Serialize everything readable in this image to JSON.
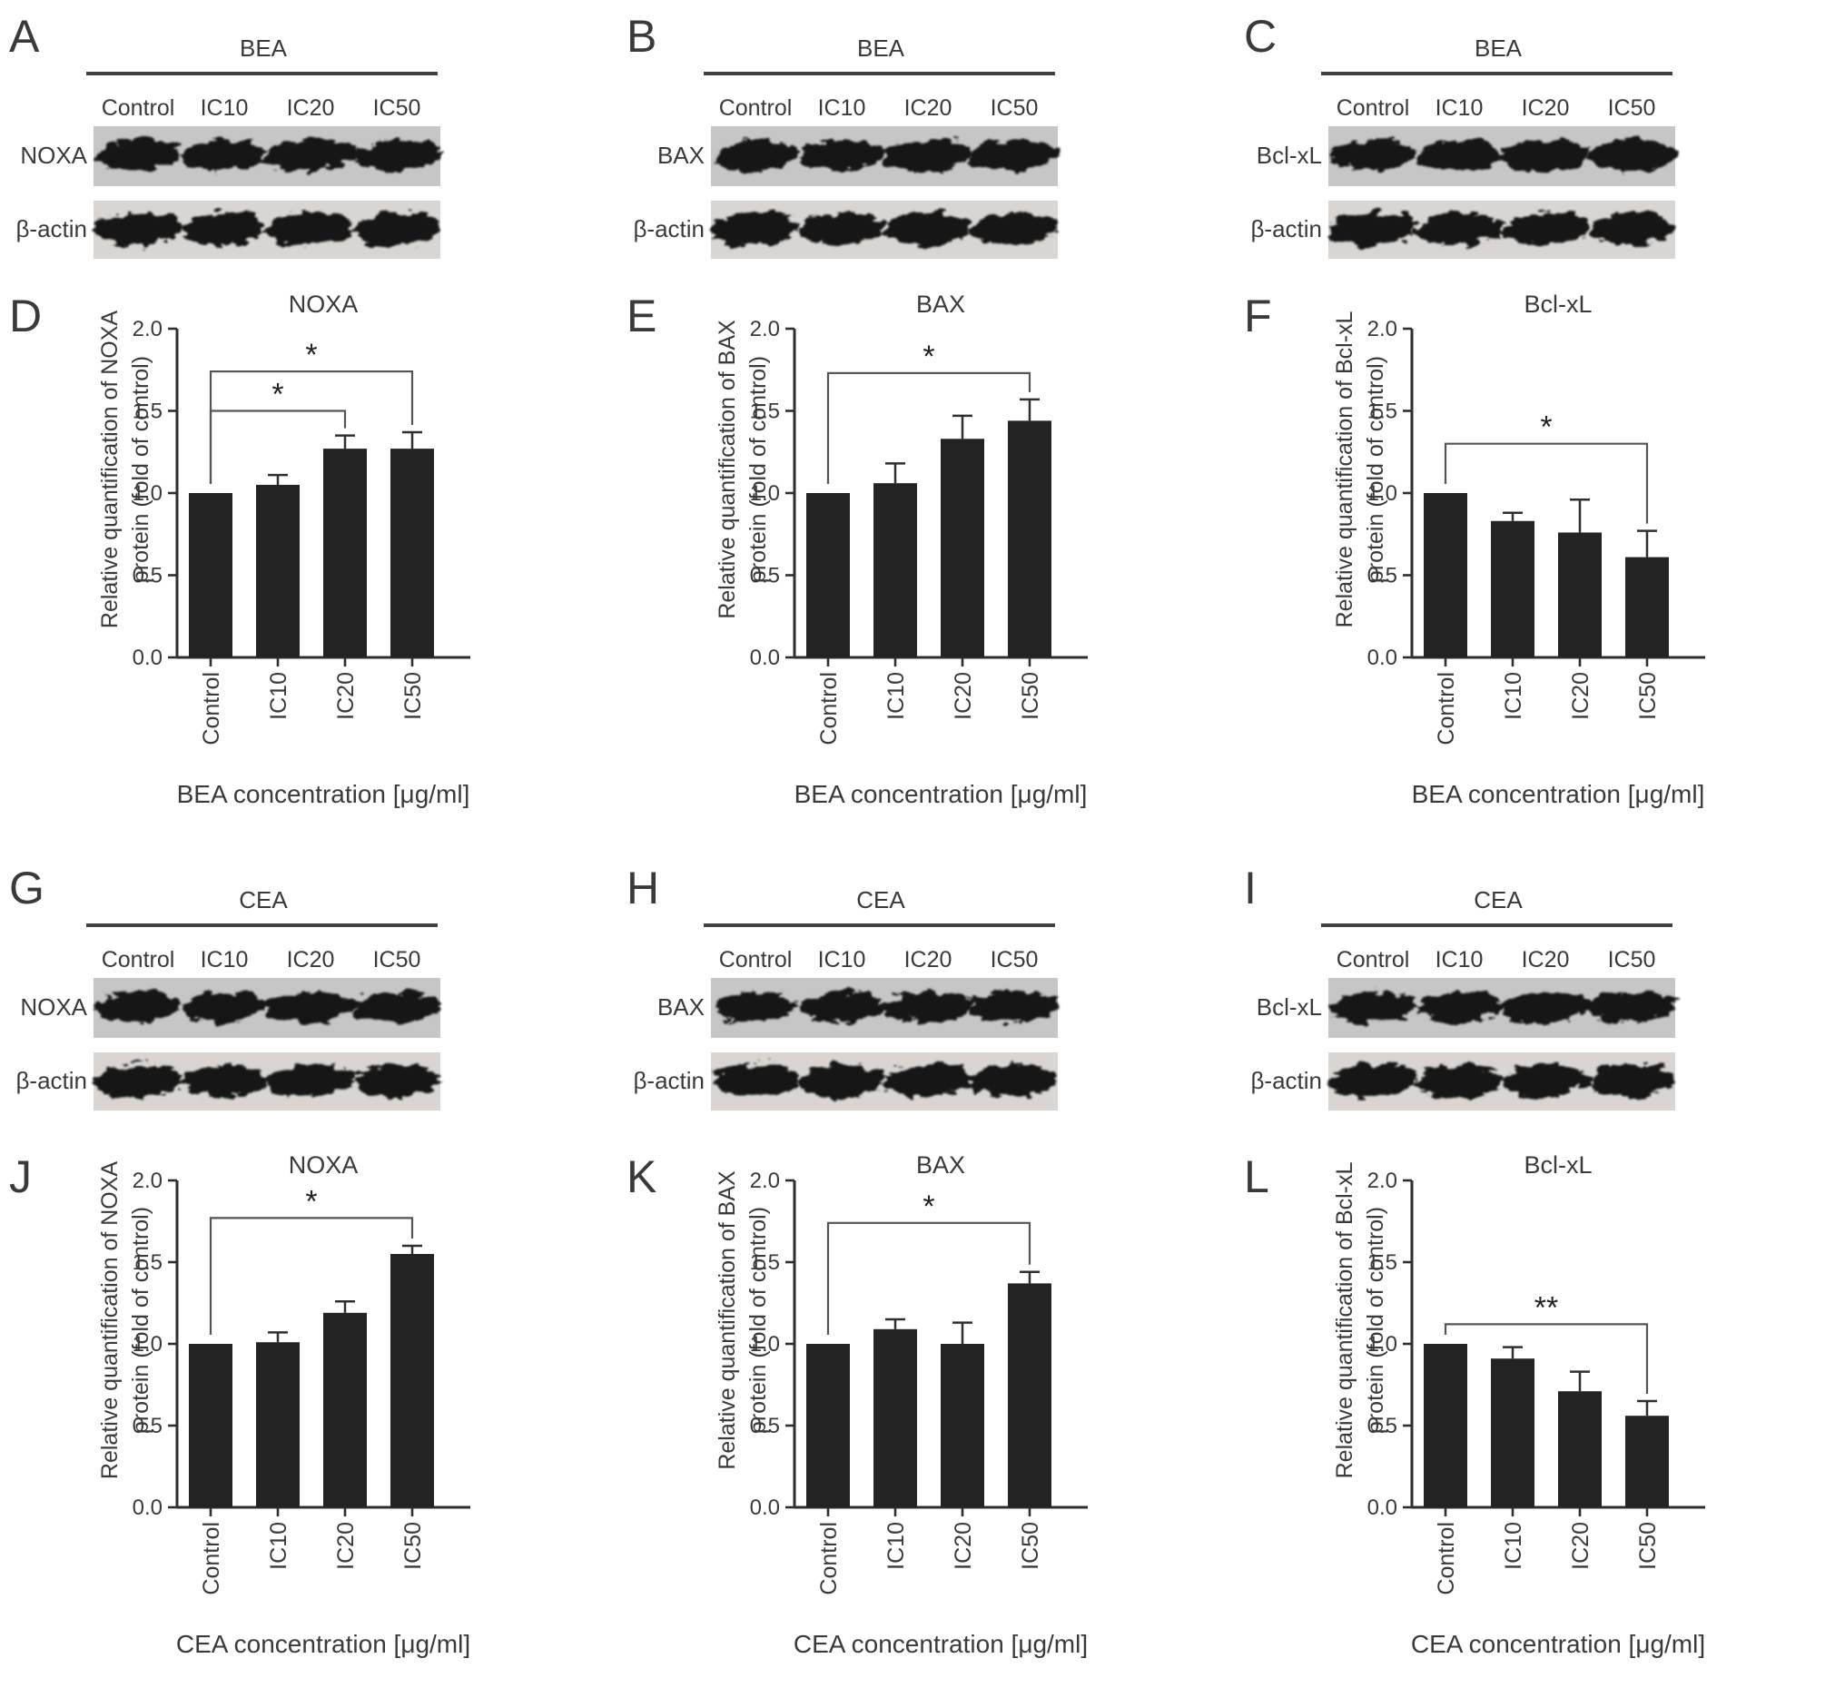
{
  "figure": {
    "background": "#ffffff",
    "description_visible_text_only": true
  },
  "colors": {
    "bar": "#232323",
    "axis": "#2e2e2e",
    "text": "#3a3a3a",
    "bracket": "#545454",
    "error_bar": "#2f2f2f",
    "header_rule": "#3f3f3f",
    "strip1_bg": "#c6c6c6",
    "strip2_bg": "#d8d5d2",
    "band": "#161616"
  },
  "blot_panels": [
    {
      "letter": "A",
      "treatment": "BEA",
      "lanes": [
        "Control",
        "IC10",
        "IC20",
        "IC50"
      ],
      "rows": [
        "NOXA",
        "β-actin"
      ]
    },
    {
      "letter": "B",
      "treatment": "BEA",
      "lanes": [
        "Control",
        "IC10",
        "IC20",
        "IC50"
      ],
      "rows": [
        "BAX",
        "β-actin"
      ]
    },
    {
      "letter": "C",
      "treatment": "BEA",
      "lanes": [
        "Control",
        "IC10",
        "IC20",
        "IC50"
      ],
      "rows": [
        "Bcl-xL",
        "β-actin"
      ]
    },
    {
      "letter": "G",
      "treatment": "CEA",
      "lanes": [
        "Control",
        "IC10",
        "IC20",
        "IC50"
      ],
      "rows": [
        "NOXA",
        "β-actin"
      ]
    },
    {
      "letter": "H",
      "treatment": "CEA",
      "lanes": [
        "Control",
        "IC10",
        "IC20",
        "IC50"
      ],
      "rows": [
        "BAX",
        "β-actin"
      ]
    },
    {
      "letter": "I",
      "treatment": "CEA",
      "lanes": [
        "Control",
        "IC10",
        "IC20",
        "IC50"
      ],
      "rows": [
        "Bcl-xL",
        "β-actin"
      ]
    }
  ],
  "chart_data": [
    {
      "letter": "D",
      "type": "bar",
      "title": "NOXA",
      "ylabel_lines": [
        "Relative quantification of NOXA",
        "protein (fold of control)"
      ],
      "xlabel": "BEA concentration [μg/ml]",
      "categories": [
        "Control",
        "IC10",
        "IC20",
        "IC50"
      ],
      "values": [
        1.0,
        1.05,
        1.27,
        1.27
      ],
      "errors": [
        0,
        0.06,
        0.08,
        0.1
      ],
      "ylim": [
        0,
        2
      ],
      "ytick_labels": [
        "0.0",
        "0.5",
        "1.0",
        "1.5",
        "2.0"
      ],
      "grid": false,
      "legend": "none",
      "significance": [
        {
          "from": 0,
          "to": 2,
          "label": "*",
          "height": 1.5
        },
        {
          "from": 0,
          "to": 3,
          "label": "*",
          "height": 1.74
        }
      ]
    },
    {
      "letter": "E",
      "type": "bar",
      "title": "BAX",
      "ylabel_lines": [
        "Relative quantification of BAX",
        "protein (fold of control)"
      ],
      "xlabel": "BEA concentration [μg/ml]",
      "categories": [
        "Control",
        "IC10",
        "IC20",
        "IC50"
      ],
      "values": [
        1.0,
        1.06,
        1.33,
        1.44
      ],
      "errors": [
        0,
        0.12,
        0.14,
        0.13
      ],
      "ylim": [
        0,
        2
      ],
      "ytick_labels": [
        "0.0",
        "0.5",
        "1.0",
        "1.5",
        "2.0"
      ],
      "grid": false,
      "legend": "none",
      "significance": [
        {
          "from": 0,
          "to": 3,
          "label": "*",
          "height": 1.73
        }
      ]
    },
    {
      "letter": "F",
      "type": "bar",
      "title": "Bcl-xL",
      "ylabel_lines": [
        "Relative quantification of Bcl-xL",
        "protein (fold of control)"
      ],
      "xlabel": "BEA concentration [μg/ml]",
      "categories": [
        "Control",
        "IC10",
        "IC20",
        "IC50"
      ],
      "values": [
        1.0,
        0.83,
        0.76,
        0.61
      ],
      "errors": [
        0,
        0.05,
        0.2,
        0.16
      ],
      "ylim": [
        0,
        2
      ],
      "ytick_labels": [
        "0.0",
        "0.5",
        "1.0",
        "1.5",
        "2.0"
      ],
      "grid": false,
      "legend": "none",
      "significance": [
        {
          "from": 0,
          "to": 3,
          "label": "*",
          "height": 1.3
        }
      ]
    },
    {
      "letter": "J",
      "type": "bar",
      "title": "NOXA",
      "ylabel_lines": [
        "Relative quantification of NOXA",
        "protein (fold of control)"
      ],
      "xlabel": "CEA concentration [μg/ml]",
      "categories": [
        "Control",
        "IC10",
        "IC20",
        "IC50"
      ],
      "values": [
        1.0,
        1.01,
        1.19,
        1.55
      ],
      "errors": [
        0,
        0.06,
        0.07,
        0.05
      ],
      "ylim": [
        0,
        2
      ],
      "ytick_labels": [
        "0.0",
        "0.5",
        "1.0",
        "1.5",
        "2.0"
      ],
      "grid": false,
      "legend": "none",
      "significance": [
        {
          "from": 0,
          "to": 3,
          "label": "*",
          "height": 1.77
        }
      ]
    },
    {
      "letter": "K",
      "type": "bar",
      "title": "BAX",
      "ylabel_lines": [
        "Relative quantification of BAX",
        "protein (fold of control)"
      ],
      "xlabel": "CEA concentration [μg/ml]",
      "categories": [
        "Control",
        "IC10",
        "IC20",
        "IC50"
      ],
      "values": [
        1.0,
        1.09,
        1.0,
        1.37
      ],
      "errors": [
        0,
        0.06,
        0.13,
        0.07
      ],
      "ylim": [
        0,
        2
      ],
      "ytick_labels": [
        "0.0",
        "0.5",
        "1.0",
        "1.5",
        "2.0"
      ],
      "grid": false,
      "legend": "none",
      "significance": [
        {
          "from": 0,
          "to": 3,
          "label": "*",
          "height": 1.74
        }
      ]
    },
    {
      "letter": "L",
      "type": "bar",
      "title": "Bcl-xL",
      "ylabel_lines": [
        "Relative quantification of Bcl-xL",
        "protein (fold of control)"
      ],
      "xlabel": "CEA concentration [μg/ml]",
      "categories": [
        "Control",
        "IC10",
        "IC20",
        "IC50"
      ],
      "values": [
        1.0,
        0.91,
        0.71,
        0.56
      ],
      "errors": [
        0,
        0.07,
        0.12,
        0.09
      ],
      "ylim": [
        0,
        2
      ],
      "ytick_labels": [
        "0.0",
        "0.5",
        "1.0",
        "1.5",
        "2.0"
      ],
      "grid": false,
      "legend": "none",
      "significance": [
        {
          "from": 0,
          "to": 3,
          "label": "**",
          "height": 1.12
        }
      ]
    }
  ]
}
